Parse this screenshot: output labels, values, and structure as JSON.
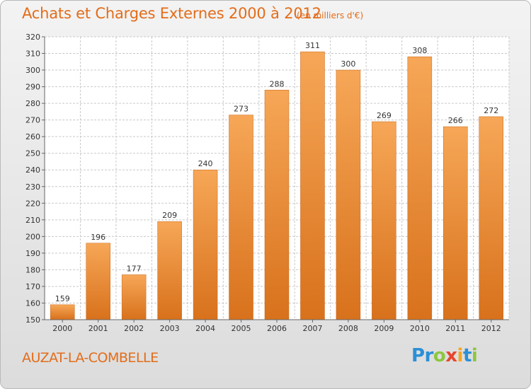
{
  "header": {
    "title": "Achats et Charges Externes 2000 à 2012",
    "subtitle": "(en milliers d'€)"
  },
  "footer": {
    "commune": "AUZAT-LA-COMBELLE",
    "logo_text": "Proxiti"
  },
  "logo_letters": [
    {
      "char": "P",
      "color": "#2b8fd6"
    },
    {
      "char": "r",
      "color": "#2b8fd6"
    },
    {
      "char": "o",
      "color": "#8cc63f"
    },
    {
      "char": "x",
      "color": "#e8452c"
    },
    {
      "char": "i",
      "color": "#f5a623"
    },
    {
      "char": "t",
      "color": "#2b8fd6"
    },
    {
      "char": "i",
      "color": "#8cc63f"
    }
  ],
  "colors": {
    "accent": "#e36c19",
    "bar_top": "#f6a757",
    "bar_bottom": "#d8711c",
    "grid": "#c9c9c9",
    "plot_bg": "#ffffff"
  },
  "chart_data": {
    "type": "bar",
    "title": "Achats et Charges Externes 2000 à 2012",
    "subtitle": "(en milliers d'€)",
    "categories": [
      "2000",
      "2001",
      "2002",
      "2003",
      "2004",
      "2005",
      "2006",
      "2007",
      "2008",
      "2009",
      "2010",
      "2011",
      "2012"
    ],
    "values": [
      159,
      196,
      177,
      209,
      240,
      273,
      288,
      311,
      300,
      269,
      308,
      266,
      272
    ],
    "ylim": [
      150,
      320
    ],
    "yticks": [
      150,
      160,
      170,
      180,
      190,
      200,
      210,
      220,
      230,
      240,
      250,
      260,
      270,
      280,
      290,
      300,
      310,
      320
    ],
    "xlabel": "",
    "ylabel": "",
    "grid": true,
    "data_labels": true
  }
}
